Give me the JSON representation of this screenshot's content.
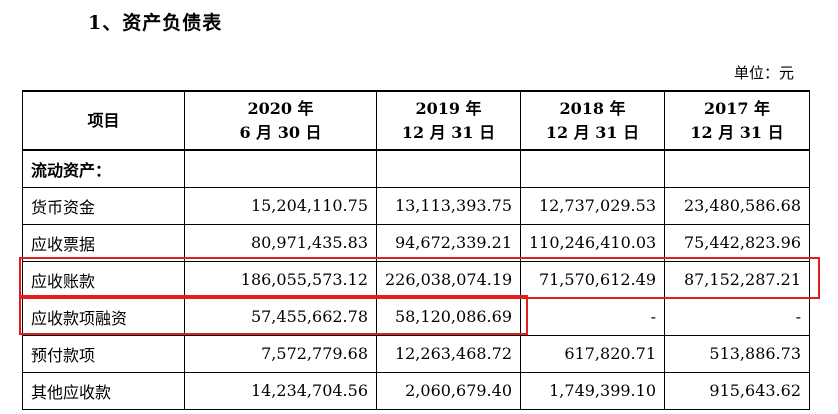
{
  "heading": "1、资产负债表",
  "unit": "单位：元",
  "table": {
    "columns": [
      {
        "line1": "项目",
        "line2": ""
      },
      {
        "line1": "2020 年",
        "line2": "6 月 30 日"
      },
      {
        "line1": "2019 年",
        "line2": "12 月 31 日"
      },
      {
        "line1": "2018 年",
        "line2": "12 月 31 日"
      },
      {
        "line1": "2017 年",
        "line2": "12 月 31 日"
      }
    ],
    "rows": [
      {
        "label": "流动资产：",
        "values": [
          "",
          "",
          "",
          ""
        ]
      },
      {
        "label": "货币资金",
        "values": [
          "15,204,110.75",
          "13,113,393.75",
          "12,737,029.53",
          "23,480,586.68"
        ]
      },
      {
        "label": "应收票据",
        "values": [
          "80,971,435.83",
          "94,672,339.21",
          "110,246,410.03",
          "75,442,823.96"
        ]
      },
      {
        "label": "应收账款",
        "values": [
          "186,055,573.12",
          "226,038,074.19",
          "71,570,612.49",
          "87,152,287.21"
        ]
      },
      {
        "label": "应收款项融资",
        "values": [
          "57,455,662.78",
          "58,120,086.69",
          "-",
          "-"
        ]
      },
      {
        "label": "预付款项",
        "values": [
          "7,572,779.68",
          "12,263,468.72",
          "617,820.71",
          "513,886.73"
        ]
      },
      {
        "label": "其他应收款",
        "values": [
          "14,234,704.56",
          "2,060,679.40",
          "1,749,399.10",
          "915,643.62"
        ]
      }
    ]
  },
  "highlight_color": "#e02020"
}
